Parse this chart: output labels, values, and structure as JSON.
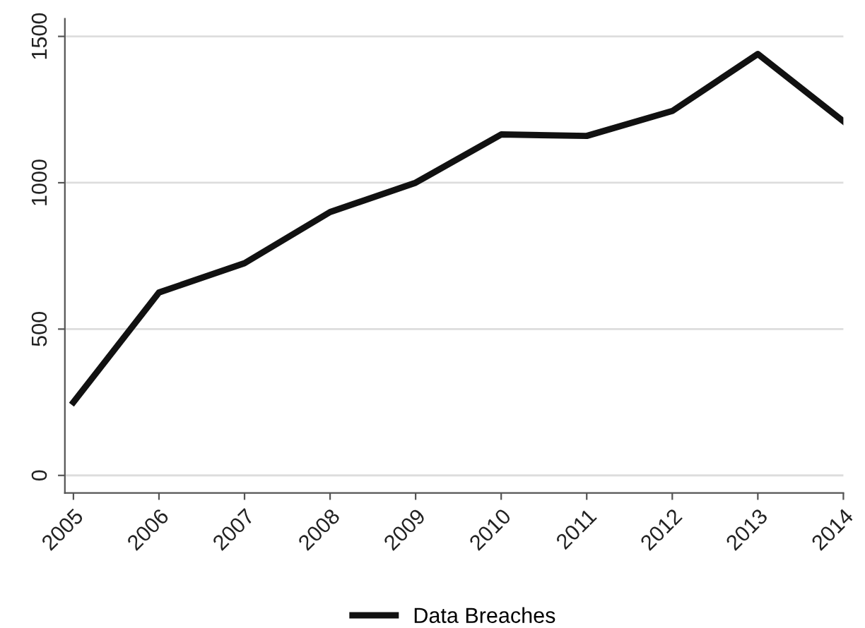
{
  "chart_data": {
    "type": "line",
    "categories": [
      "2005",
      "2006",
      "2007",
      "2008",
      "2009",
      "2010",
      "2011",
      "2012",
      "2013",
      "2014"
    ],
    "series": [
      {
        "name": "Data Breaches",
        "color": "#111111",
        "values": [
          250,
          625,
          725,
          900,
          1000,
          1165,
          1160,
          1245,
          1440,
          1210
        ]
      }
    ],
    "ylim": [
      -60,
      1560
    ],
    "yticks": [
      0,
      500,
      1000,
      1500
    ],
    "grid": "y",
    "legend": "bottom",
    "line_style": "solid",
    "marker": "none"
  }
}
